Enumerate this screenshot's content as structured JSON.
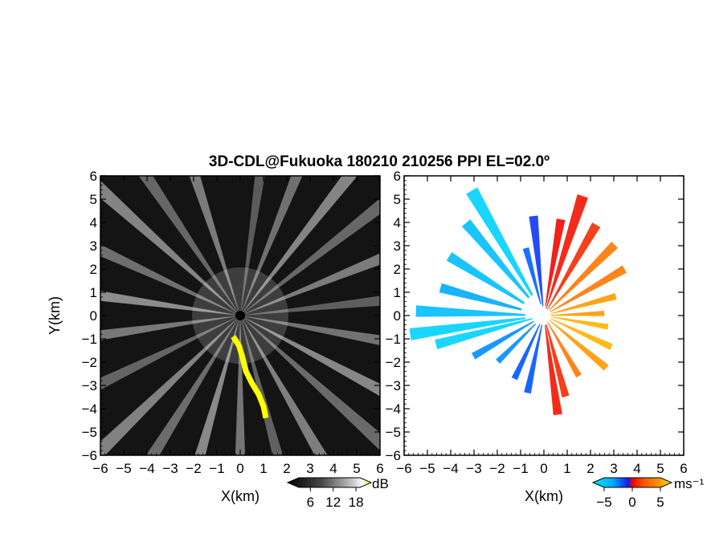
{
  "figure": {
    "title": "3D-CDL@Fukuoka 180210 210256 PPI EL=02.0º"
  },
  "chart_data": [
    {
      "type": "heatmap",
      "panel": "left",
      "xlabel": "X(km)",
      "ylabel": "Y(km)",
      "xlim": [
        -6,
        6
      ],
      "ylim": [
        -6,
        6
      ],
      "xticks": [
        -6,
        -5,
        -4,
        -3,
        -2,
        -1,
        0,
        1,
        2,
        3,
        4,
        5,
        6
      ],
      "yticks": [
        -6,
        -5,
        -4,
        -3,
        -2,
        -1,
        0,
        1,
        2,
        3,
        4,
        5,
        6
      ],
      "grid": false,
      "colorbar": {
        "unit": "dB",
        "ticks": [
          6,
          12,
          18
        ],
        "range": [
          0,
          22
        ],
        "colors": [
          "#000000",
          "#333333",
          "#666666",
          "#999999",
          "#cccccc",
          "#ffffff",
          "#ffff00"
        ]
      },
      "yellow_feature": [
        [
          -0.3,
          -0.9
        ],
        [
          -0.05,
          -1.3
        ],
        [
          0.1,
          -1.8
        ],
        [
          0.25,
          -2.4
        ],
        [
          0.5,
          -2.9
        ],
        [
          0.8,
          -3.4
        ],
        [
          1.0,
          -3.9
        ],
        [
          1.1,
          -4.4
        ]
      ],
      "ray_azimuths_deg": [
        8,
        22,
        38,
        52,
        68,
        84,
        100,
        118,
        132,
        150,
        165,
        180,
        196,
        212,
        226,
        244,
        262,
        278,
        295,
        312,
        326,
        342
      ]
    },
    {
      "type": "scatter",
      "panel": "right",
      "xlabel": "X(km)",
      "ylabel": "",
      "xlim": [
        -6,
        6
      ],
      "ylim": [
        -6,
        6
      ],
      "xticks": [
        -6,
        -5,
        -4,
        -3,
        -2,
        -1,
        0,
        1,
        2,
        3,
        4,
        5,
        6
      ],
      "yticks": [
        -6,
        -5,
        -4,
        -3,
        -2,
        -1,
        0,
        1,
        2,
        3,
        4,
        5,
        6
      ],
      "grid": false,
      "colorbar": {
        "unit": "ms⁻¹",
        "ticks": [
          -5,
          0,
          5
        ],
        "range": [
          -7,
          7
        ],
        "colors": [
          "#00e5ff",
          "#00aaff",
          "#0055ff",
          "#1a1aee",
          "#ee0000",
          "#ff5500",
          "#ff9900",
          "#ffcc00",
          "#ffee00"
        ]
      },
      "rays": [
        {
          "az_deg": 330,
          "r_km": [
            1.0,
            6.2
          ],
          "v": -6
        },
        {
          "az_deg": 320,
          "r_km": [
            1.0,
            5.2
          ],
          "v": -5
        },
        {
          "az_deg": 302,
          "r_km": [
            1.0,
            4.8
          ],
          "v": -5
        },
        {
          "az_deg": 285,
          "r_km": [
            1.0,
            4.6
          ],
          "v": -4
        },
        {
          "az_deg": 272,
          "r_km": [
            0.8,
            5.5
          ],
          "v": -5
        },
        {
          "az_deg": 262,
          "r_km": [
            0.8,
            5.8
          ],
          "v": -6
        },
        {
          "az_deg": 255,
          "r_km": [
            0.5,
            4.8
          ],
          "v": -6
        },
        {
          "az_deg": 240,
          "r_km": [
            0.5,
            3.5
          ],
          "v": -3
        },
        {
          "az_deg": 225,
          "r_km": [
            0.5,
            2.8
          ],
          "v": -3
        },
        {
          "az_deg": 205,
          "r_km": [
            0.4,
            3.0
          ],
          "v": -1
        },
        {
          "az_deg": 192,
          "r_km": [
            0.4,
            3.4
          ],
          "v": -1
        },
        {
          "az_deg": 172,
          "r_km": [
            0.4,
            4.3
          ],
          "v": 0.5
        },
        {
          "az_deg": 165,
          "r_km": [
            0.4,
            3.6
          ],
          "v": 1
        },
        {
          "az_deg": 150,
          "r_km": [
            0.3,
            3.0
          ],
          "v": 3
        },
        {
          "az_deg": 130,
          "r_km": [
            0.3,
            3.5
          ],
          "v": 4
        },
        {
          "az_deg": 115,
          "r_km": [
            0.3,
            3.2
          ],
          "v": 5
        },
        {
          "az_deg": 100,
          "r_km": [
            0.3,
            2.8
          ],
          "v": 5
        },
        {
          "az_deg": 88,
          "r_km": [
            0.3,
            2.6
          ],
          "v": 4
        },
        {
          "az_deg": 75,
          "r_km": [
            0.3,
            3.2
          ],
          "v": 4
        },
        {
          "az_deg": 60,
          "r_km": [
            0.3,
            4.0
          ],
          "v": 3
        },
        {
          "az_deg": 45,
          "r_km": [
            0.3,
            4.3
          ],
          "v": 3
        },
        {
          "az_deg": 30,
          "r_km": [
            0.3,
            4.5
          ],
          "v": 1
        },
        {
          "az_deg": 18,
          "r_km": [
            0.3,
            5.4
          ],
          "v": 0.5
        },
        {
          "az_deg": 10,
          "r_km": [
            0.4,
            4.2
          ],
          "v": 0.2
        },
        {
          "az_deg": 354,
          "r_km": [
            0.4,
            4.3
          ],
          "v": -0.5
        },
        {
          "az_deg": 345,
          "r_km": [
            0.5,
            3.0
          ],
          "v": -1.5
        }
      ]
    }
  ]
}
